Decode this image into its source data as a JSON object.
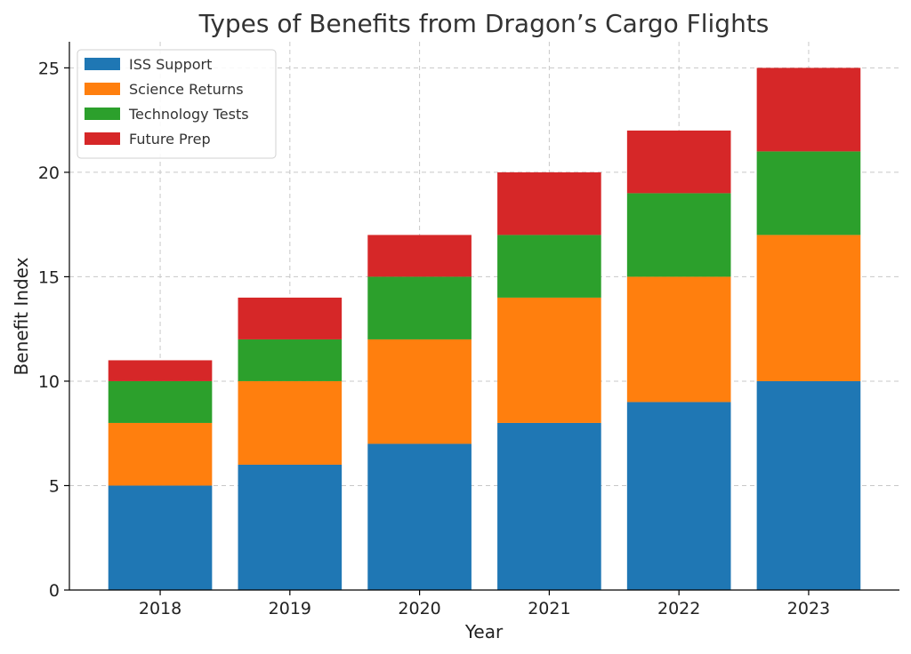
{
  "chart_data": {
    "type": "bar",
    "stacked": true,
    "title": "Types of Benefits from Dragon’s Cargo Flights",
    "xlabel": "Year",
    "ylabel": "Benefit Index",
    "categories": [
      "2018",
      "2019",
      "2020",
      "2021",
      "2022",
      "2023"
    ],
    "series": [
      {
        "name": "ISS Support",
        "color": "#1f77b4",
        "values": [
          5,
          6,
          7,
          8,
          9,
          10
        ]
      },
      {
        "name": "Science Returns",
        "color": "#ff7f0e",
        "values": [
          3,
          4,
          5,
          6,
          6,
          7
        ]
      },
      {
        "name": "Technology Tests",
        "color": "#2ca02c",
        "values": [
          2,
          2,
          3,
          3,
          4,
          4
        ]
      },
      {
        "name": "Future Prep",
        "color": "#d62728",
        "values": [
          1,
          2,
          2,
          3,
          3,
          4
        ]
      }
    ],
    "ylim": [
      0,
      26.25
    ],
    "yticks": [
      0,
      5,
      10,
      15,
      20,
      25
    ],
    "grid": true,
    "legend_position": "top-left"
  }
}
